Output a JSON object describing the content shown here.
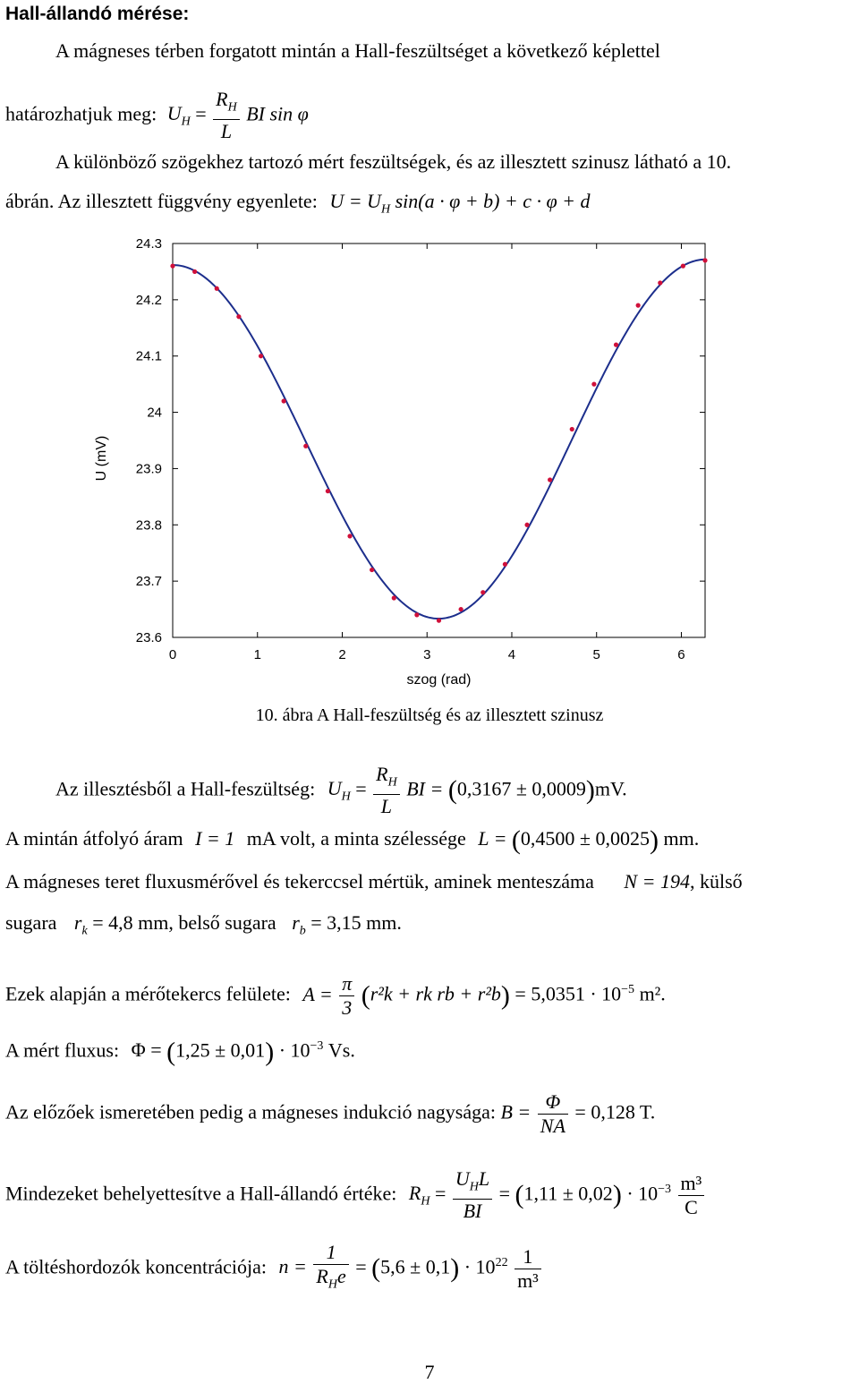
{
  "heading": "Hall-állandó mérése:",
  "p1": {
    "line1": "A mágneses térben forgatott mintán a Hall-feszültséget a következő képlettel",
    "line2_prefix": "határozhatjuk meg:",
    "formula": {
      "lhs": "U",
      "lhs_sub": "H",
      "num": "R",
      "num_sub": "H",
      "den": "L",
      "rhs": "BI sin φ"
    }
  },
  "p2": {
    "line1": "A különböző szögekhez tartozó mért feszültségek, és az illesztett szinusz látható a 10.",
    "line2_prefix": "ábrán. Az illesztett függvény egyenlete:",
    "formula": "U = U",
    "formula_sub": "H",
    "formula_rest": "sin(a · φ + b) + c · φ + d"
  },
  "chart_data": {
    "type": "scatter",
    "xlabel": "szog (rad)",
    "ylabel": "U (mV)",
    "xlim": [
      0,
      6.28
    ],
    "ylim": [
      23.6,
      24.3
    ],
    "xticks": [
      "0",
      "1",
      "2",
      "3",
      "4",
      "5",
      "6"
    ],
    "yticks": [
      "24.3",
      "24.2",
      "24.1",
      "24",
      "23.9",
      "23.8",
      "23.7",
      "23.6"
    ],
    "xtick_values": [
      0,
      1,
      2,
      3,
      4,
      5,
      6
    ],
    "ytick_values": [
      24.3,
      24.2,
      24.1,
      24.0,
      23.9,
      23.8,
      23.7,
      23.6
    ],
    "grid": false,
    "points": {
      "x": [
        0.0,
        0.26,
        0.52,
        0.78,
        1.04,
        1.31,
        1.57,
        1.83,
        2.09,
        2.35,
        2.61,
        2.88,
        3.14,
        3.4,
        3.66,
        3.92,
        4.18,
        4.45,
        4.71,
        4.97,
        5.23,
        5.49,
        5.75,
        6.02,
        6.28
      ],
      "y": [
        24.26,
        24.25,
        24.22,
        24.17,
        24.1,
        24.02,
        23.94,
        23.86,
        23.78,
        23.72,
        23.67,
        23.64,
        23.63,
        23.65,
        23.68,
        23.73,
        23.8,
        23.88,
        23.97,
        24.05,
        24.12,
        24.19,
        24.23,
        24.26,
        24.27
      ]
    },
    "fit": {
      "amplitude": 0.3167,
      "a": 1.0,
      "b": 1.5708,
      "c": 0.0016,
      "d": 23.945
    },
    "point_color": "#d0103a",
    "line_color": "#1c2e8c"
  },
  "caption": "10. ábra A Hall-feszültség és az illesztett szinusz",
  "p3": {
    "prefix": "Az illesztésből a Hall-feszültség:",
    "lhs": "U",
    "lhs_sub": "H",
    "num": "R",
    "num_sub": "H",
    "den": "L",
    "rhs1": "BI =",
    "value": "0,3167 ± 0,0009",
    "unit": "mV."
  },
  "p4": {
    "prefix": "A mintán átfolyó áram",
    "current": "I = 1",
    "mid": "mA volt, a minta szélessége",
    "lhs": "L =",
    "value": "0,4500 ± 0,0025",
    "unit": "mm."
  },
  "p5": {
    "line1": "A mágneses teret fluxusmérővel és tekerccsel mértük, aminek menteszáma",
    "n_value": "N = 194",
    "line1_end": ", külső",
    "line2_a": "sugara",
    "rk": "r",
    "rk_sub": "k",
    "rk_value": "= 4,8 mm, belső sugara",
    "rb": "r",
    "rb_sub": "b",
    "rb_value": "= 3,15 mm."
  },
  "p6": {
    "prefix": "Ezek alapján a mérőtekercs felülete:",
    "lhs": "A =",
    "num": "π",
    "den": "3",
    "expr": "r²k + rk rb + r²b",
    "result": "= 5,0351 · 10",
    "exp": "−5",
    "unit": "m²."
  },
  "p7": {
    "prefix": "A mért fluxus:",
    "lhs": "Φ =",
    "value": "1,25 ± 0,01",
    "mult": "· 10",
    "exp": "−3",
    "unit": "Vs."
  },
  "p8": {
    "prefix": "Az előzőek ismeretében pedig a mágneses indukció nagysága:",
    "lhs": "B =",
    "num": "Φ",
    "den": "NA",
    "result": "= 0,128 T."
  },
  "p9": {
    "prefix": "Mindezeket behelyettesítve a Hall-állandó értéke:",
    "lhs": "R",
    "lhs_sub": "H",
    "num": "U",
    "num_sub": "H",
    "num_rest": "L",
    "den": "BI",
    "value": "1,11 ± 0,02",
    "mult": "· 10",
    "exp": "−3",
    "unit_num": "m³",
    "unit_den": "C"
  },
  "p10": {
    "prefix": "A töltéshordozók koncentrációja:",
    "lhs": "n =",
    "num": "1",
    "den": "R",
    "den_sub": "H",
    "den_rest": "e",
    "value": "5,6 ± 0,1",
    "mult": "· 10",
    "exp": "22",
    "unit_num": "1",
    "unit_den": "m³"
  },
  "page_number": "7"
}
